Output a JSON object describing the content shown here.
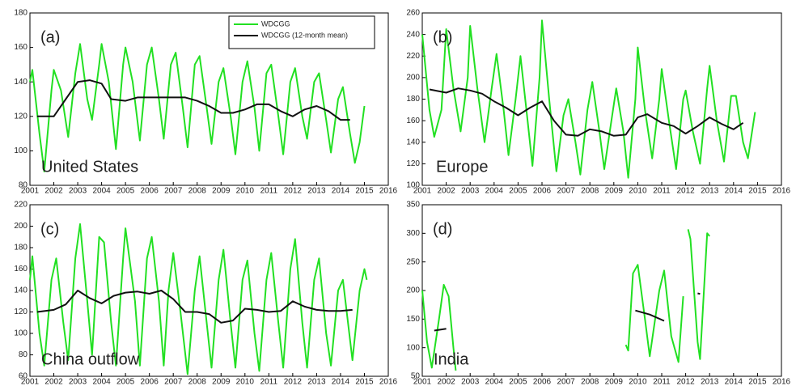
{
  "chart_data": [
    {
      "type": "line",
      "panel_label": "(a)",
      "region": "United States",
      "xlim": [
        2001,
        2016
      ],
      "xticks": [
        2001,
        2002,
        2003,
        2004,
        2005,
        2006,
        2007,
        2008,
        2009,
        2010,
        2011,
        2012,
        2013,
        2014,
        2015,
        2016
      ],
      "ylim": [
        80,
        180
      ],
      "yticks": [
        80,
        100,
        120,
        140,
        160,
        180
      ],
      "series": [
        {
          "name": "WDCGG",
          "color": "#22e022",
          "x": [
            2001.0,
            2001.1,
            2001.4,
            2001.6,
            2001.9,
            2002.0,
            2002.3,
            2002.6,
            2002.9,
            2003.1,
            2003.4,
            2003.6,
            2003.9,
            2004.0,
            2004.3,
            2004.6,
            2004.9,
            2005.0,
            2005.3,
            2005.6,
            2005.9,
            2006.1,
            2006.4,
            2006.6,
            2006.9,
            2007.1,
            2007.4,
            2007.6,
            2007.9,
            2008.1,
            2008.4,
            2008.6,
            2008.9,
            2009.1,
            2009.4,
            2009.6,
            2009.9,
            2010.1,
            2010.4,
            2010.6,
            2010.9,
            2011.1,
            2011.4,
            2011.6,
            2011.9,
            2012.1,
            2012.4,
            2012.6,
            2012.9,
            2013.1,
            2013.4,
            2013.6,
            2013.9,
            2014.1,
            2014.4,
            2014.6,
            2014.8,
            2015.0
          ],
          "values": [
            140,
            147,
            110,
            88,
            135,
            147,
            135,
            108,
            145,
            162,
            130,
            118,
            150,
            162,
            140,
            101,
            150,
            160,
            140,
            106,
            150,
            160,
            130,
            107,
            150,
            157,
            125,
            102,
            150,
            155,
            125,
            104,
            140,
            148,
            120,
            98,
            140,
            152,
            125,
            100,
            145,
            150,
            120,
            98,
            140,
            148,
            120,
            107,
            140,
            145,
            118,
            99,
            130,
            137,
            110,
            93,
            105,
            126
          ]
        },
        {
          "name": "WDCGG (12-month mean)",
          "color": "#111111",
          "x": [
            2001.3,
            2002.0,
            2002.5,
            2003.0,
            2003.5,
            2004.0,
            2004.4,
            2005.0,
            2005.5,
            2006.0,
            2007.0,
            2007.5,
            2008.0,
            2008.5,
            2009.0,
            2009.5,
            2010.0,
            2010.5,
            2011.0,
            2011.5,
            2012.0,
            2012.5,
            2013.0,
            2013.5,
            2014.0,
            2014.4
          ],
          "values": [
            120,
            120,
            130,
            140,
            141,
            139,
            130,
            129,
            131,
            131,
            131,
            131,
            129,
            126,
            122,
            122,
            124,
            127,
            127,
            123,
            120,
            124,
            126,
            123,
            118,
            118
          ]
        }
      ]
    },
    {
      "type": "line",
      "panel_label": "(b)",
      "region": "Europe",
      "xlim": [
        2001,
        2016
      ],
      "xticks": [
        2001,
        2002,
        2003,
        2004,
        2005,
        2006,
        2007,
        2008,
        2009,
        2010,
        2011,
        2012,
        2013,
        2014,
        2015,
        2016
      ],
      "ylim": [
        100,
        260
      ],
      "yticks": [
        100,
        120,
        140,
        160,
        180,
        200,
        220,
        240,
        260
      ],
      "series": [
        {
          "color": "#22e022",
          "x": [
            2001.0,
            2001.3,
            2001.5,
            2001.8,
            2002.0,
            2002.3,
            2002.6,
            2002.9,
            2003.0,
            2003.3,
            2003.6,
            2003.9,
            2004.1,
            2004.4,
            2004.6,
            2004.9,
            2005.1,
            2005.4,
            2005.6,
            2005.9,
            2006.0,
            2006.3,
            2006.6,
            2006.9,
            2007.1,
            2007.4,
            2007.6,
            2007.9,
            2008.1,
            2008.4,
            2008.6,
            2008.9,
            2009.1,
            2009.4,
            2009.6,
            2009.9,
            2010.0,
            2010.3,
            2010.6,
            2010.9,
            2011.0,
            2011.3,
            2011.6,
            2011.9,
            2012.0,
            2012.3,
            2012.6,
            2012.9,
            2013.0,
            2013.3,
            2013.6,
            2013.9,
            2014.1,
            2014.4,
            2014.6,
            2014.9
          ],
          "values": [
            240,
            170,
            145,
            170,
            245,
            190,
            150,
            200,
            248,
            190,
            140,
            190,
            222,
            170,
            128,
            180,
            220,
            160,
            118,
            200,
            253,
            180,
            113,
            165,
            180,
            140,
            110,
            170,
            196,
            150,
            115,
            160,
            190,
            150,
            107,
            180,
            228,
            170,
            125,
            180,
            208,
            160,
            115,
            180,
            188,
            150,
            120,
            190,
            211,
            160,
            122,
            183,
            183,
            140,
            125,
            168
          ]
        },
        {
          "color": "#111111",
          "x": [
            2001.3,
            2002.0,
            2002.5,
            2003.0,
            2003.5,
            2004.0,
            2004.5,
            2005.0,
            2005.5,
            2006.0,
            2006.5,
            2007.0,
            2007.5,
            2008.0,
            2008.5,
            2009.0,
            2009.5,
            2010.0,
            2010.4,
            2011.0,
            2011.5,
            2012.0,
            2012.5,
            2013.0,
            2013.5,
            2014.0,
            2014.4
          ],
          "values": [
            189,
            186,
            190,
            188,
            185,
            178,
            172,
            165,
            172,
            178,
            160,
            147,
            146,
            152,
            150,
            146,
            147,
            163,
            166,
            158,
            155,
            148,
            155,
            163,
            157,
            152,
            158
          ]
        }
      ]
    },
    {
      "type": "line",
      "panel_label": "(c)",
      "region": "China outflow",
      "xlim": [
        2001,
        2016
      ],
      "xticks": [
        2001,
        2002,
        2003,
        2004,
        2005,
        2006,
        2007,
        2008,
        2009,
        2010,
        2011,
        2012,
        2013,
        2014,
        2015,
        2016
      ],
      "ylim": [
        60,
        220
      ],
      "yticks": [
        60,
        80,
        100,
        120,
        140,
        160,
        180,
        200,
        220
      ],
      "series": [
        {
          "color": "#22e022",
          "x": [
            2001.0,
            2001.1,
            2001.4,
            2001.6,
            2001.9,
            2002.1,
            2002.4,
            2002.6,
            2002.9,
            2003.1,
            2003.4,
            2003.6,
            2003.9,
            2004.1,
            2004.4,
            2004.6,
            2004.9,
            2005.0,
            2005.4,
            2005.6,
            2005.9,
            2006.1,
            2006.4,
            2006.6,
            2006.8,
            2007.0,
            2007.3,
            2007.6,
            2007.9,
            2008.1,
            2008.4,
            2008.6,
            2008.9,
            2009.1,
            2009.4,
            2009.6,
            2009.9,
            2010.1,
            2010.4,
            2010.6,
            2010.9,
            2011.1,
            2011.4,
            2011.6,
            2011.9,
            2012.1,
            2012.4,
            2012.6,
            2012.9,
            2013.1,
            2013.4,
            2013.6,
            2013.9,
            2014.1,
            2014.5,
            2014.8,
            2015.0,
            2015.1
          ],
          "values": [
            150,
            172,
            100,
            70,
            150,
            170,
            110,
            75,
            170,
            202,
            130,
            80,
            190,
            185,
            110,
            70,
            170,
            198,
            130,
            70,
            170,
            190,
            130,
            70,
            140,
            175,
            120,
            62,
            140,
            172,
            110,
            68,
            150,
            178,
            110,
            68,
            150,
            168,
            100,
            65,
            150,
            175,
            110,
            68,
            160,
            188,
            110,
            68,
            150,
            170,
            100,
            70,
            140,
            150,
            75,
            140,
            160,
            150
          ]
        },
        {
          "color": "#111111",
          "x": [
            2001.3,
            2002.0,
            2002.5,
            2003.0,
            2003.5,
            2004.0,
            2004.5,
            2005.0,
            2005.5,
            2006.0,
            2006.5,
            2007.0,
            2007.5,
            2008.0,
            2008.5,
            2009.0,
            2009.5,
            2010.0,
            2010.5,
            2011.0,
            2011.5,
            2012.0,
            2012.5,
            2013.0,
            2013.5,
            2014.0,
            2014.5
          ],
          "values": [
            120,
            122,
            127,
            140,
            133,
            128,
            135,
            138,
            139,
            137,
            140,
            132,
            120,
            120,
            118,
            110,
            112,
            123,
            122,
            120,
            121,
            130,
            125,
            122,
            121,
            121,
            122
          ]
        }
      ]
    },
    {
      "type": "line",
      "panel_label": "(d)",
      "region": "India",
      "xlim": [
        2001,
        2016
      ],
      "xticks": [
        2001,
        2002,
        2003,
        2004,
        2005,
        2006,
        2007,
        2008,
        2009,
        2010,
        2011,
        2012,
        2013,
        2014,
        2015,
        2016
      ],
      "ylim": [
        50,
        350
      ],
      "yticks": [
        50,
        100,
        150,
        200,
        250,
        300,
        350
      ],
      "series": [
        {
          "color": "#22e022",
          "x": [
            2001.0,
            2001.2,
            2001.4,
            2001.7,
            2001.9,
            2002.1,
            2002.3,
            2002.4,
            2002.5,
            2009.5,
            2009.6,
            2009.8,
            2010.0,
            2010.3,
            2010.5,
            2010.9,
            2011.1,
            2011.4,
            2011.7,
            2011.9,
            2012.0,
            2012.1,
            2012.2,
            2012.5,
            2012.6,
            2012.9,
            2013.0
          ],
          "values": [
            200,
            110,
            65,
            150,
            210,
            190,
            100,
            60,
            null,
            105,
            95,
            230,
            245,
            150,
            85,
            200,
            235,
            120,
            75,
            190,
            null,
            307,
            290,
            110,
            80,
            300,
            295
          ]
        },
        {
          "color": "#111111",
          "x": [
            2001.5,
            2002.0,
            2005.0,
            2009.9,
            2010.5,
            2011.1,
            2012.0,
            2012.5,
            2012.6
          ],
          "values": [
            130,
            133,
            null,
            165,
            158,
            147,
            null,
            195,
            194
          ]
        }
      ]
    }
  ]
}
